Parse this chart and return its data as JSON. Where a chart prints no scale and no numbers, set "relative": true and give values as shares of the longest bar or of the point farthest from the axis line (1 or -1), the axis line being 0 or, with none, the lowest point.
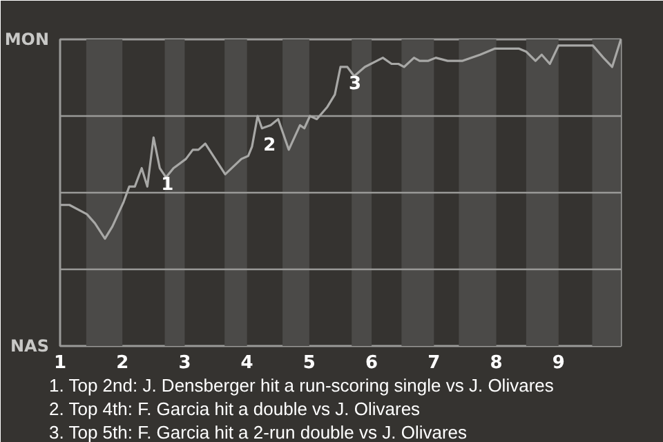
{
  "chart_data": {
    "type": "line",
    "relative": true,
    "x": [
      1.01,
      1.15,
      1.43,
      1.56,
      1.72,
      1.84,
      2.02,
      2.11,
      2.2,
      2.31,
      2.4,
      2.5,
      2.6,
      2.7,
      2.82,
      3.02,
      3.13,
      3.22,
      3.33,
      3.65,
      3.91,
      4.02,
      4.08,
      4.17,
      4.24,
      4.38,
      4.5,
      4.67,
      4.85,
      4.92,
      5.01,
      5.12,
      5.29,
      5.41,
      5.5,
      5.61,
      5.72,
      5.89,
      6.18,
      6.32,
      6.43,
      6.52,
      6.68,
      6.77,
      6.91,
      7.03,
      7.22,
      7.46,
      7.74,
      7.98,
      8.15,
      8.36,
      8.48,
      8.63,
      8.73,
      8.86,
      9.0,
      9.55,
      9.72,
      9.86,
      10.0
    ],
    "series": [
      {
        "color": "#a8a8a6",
        "values": [
          0.46,
          0.46,
          0.43,
          0.4,
          0.35,
          0.39,
          0.47,
          0.52,
          0.52,
          0.58,
          0.52,
          0.68,
          0.58,
          0.55,
          0.58,
          0.61,
          0.64,
          0.64,
          0.66,
          0.56,
          0.61,
          0.62,
          0.65,
          0.75,
          0.71,
          0.72,
          0.74,
          0.64,
          0.72,
          0.71,
          0.75,
          0.74,
          0.78,
          0.82,
          0.91,
          0.91,
          0.88,
          0.91,
          0.94,
          0.92,
          0.92,
          0.91,
          0.94,
          0.93,
          0.93,
          0.94,
          0.93,
          0.93,
          0.95,
          0.97,
          0.97,
          0.97,
          0.96,
          0.93,
          0.95,
          0.92,
          0.98,
          0.98,
          0.94,
          0.91,
          1.0
        ]
      }
    ],
    "xlim": [
      1,
      10
    ],
    "xticks": [
      1,
      2,
      3,
      4,
      5,
      6,
      7,
      8,
      9
    ],
    "line_style": "solid",
    "ref_lines": [
      {
        "axis": "y",
        "value": 0.25,
        "color": "#9a9a98"
      },
      {
        "axis": "y",
        "value": 0.5,
        "color": "#9a9a98"
      },
      {
        "axis": "y",
        "value": 0.75,
        "color": "#9a9a98"
      }
    ],
    "bands": [
      {
        "axis": "x",
        "from": 1.42,
        "to": 2.0,
        "color": "#4b4a48"
      },
      {
        "axis": "x",
        "from": 2.68,
        "to": 3.0,
        "color": "#4b4a48"
      },
      {
        "axis": "x",
        "from": 3.64,
        "to": 4.0,
        "color": "#4b4a48"
      },
      {
        "axis": "x",
        "from": 4.57,
        "to": 5.0,
        "color": "#4b4a48"
      },
      {
        "axis": "x",
        "from": 5.68,
        "to": 6.0,
        "color": "#4b4a48"
      },
      {
        "axis": "x",
        "from": 6.48,
        "to": 7.0,
        "color": "#4b4a48"
      },
      {
        "axis": "x",
        "from": 7.4,
        "to": 8.0,
        "color": "#4b4a48"
      },
      {
        "axis": "x",
        "from": 8.48,
        "to": 9.0,
        "color": "#4b4a48"
      },
      {
        "axis": "x",
        "from": 9.54,
        "to": 10.0,
        "color": "#4b4a48"
      }
    ],
    "annotations": [
      "MON",
      "NAS",
      {
        "text": "1",
        "x": 2.6,
        "y": 0.58
      },
      {
        "text": "2",
        "x": 4.24,
        "y": 0.71
      },
      {
        "text": "3",
        "x": 5.61,
        "y": 0.91
      },
      "1. Top 2nd: J. Densberger hit a run-scoring single vs J. Olivares",
      "2. Top 4th: F. Garcia hit a double vs J. Olivares",
      "3. Top 5th: F. Garcia hit a 2-run double vs J. Olivares"
    ]
  }
}
